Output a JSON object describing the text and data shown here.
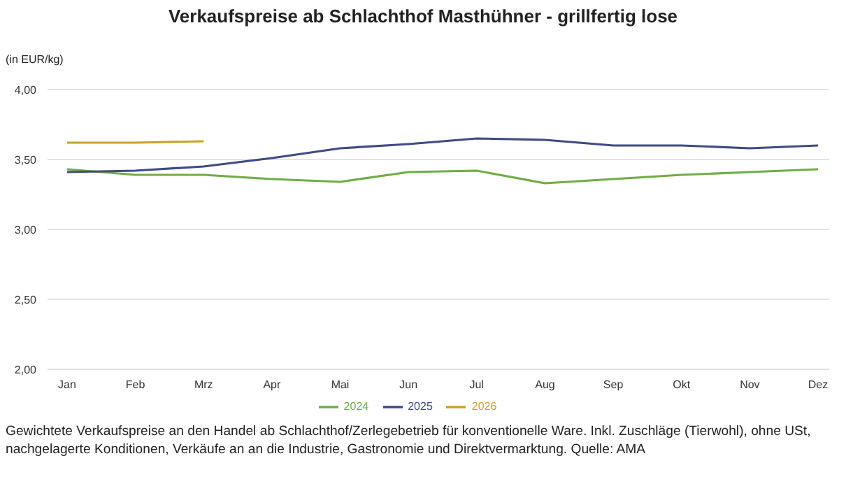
{
  "chart_data": {
    "type": "line",
    "title": "Verkaufspreise ab Schlachthof Masthühner - grillfertig lose",
    "ylabel": "(in EUR/kg)",
    "categories": [
      "Jan",
      "Feb",
      "Mrz",
      "Apr",
      "Mai",
      "Jun",
      "Jul",
      "Aug",
      "Sep",
      "Okt",
      "Nov",
      "Dez"
    ],
    "series": [
      {
        "name": "2024",
        "color": "#70ad47",
        "values": [
          3.43,
          3.39,
          3.39,
          3.36,
          3.34,
          3.41,
          3.42,
          3.33,
          3.36,
          3.39,
          3.41,
          3.43
        ]
      },
      {
        "name": "2025",
        "color": "#404a86",
        "values": [
          3.41,
          3.42,
          3.45,
          3.51,
          3.58,
          3.61,
          3.65,
          3.64,
          3.6,
          3.6,
          3.58,
          3.6
        ]
      },
      {
        "name": "2026",
        "color": "#c9a227",
        "values": [
          3.62,
          3.62,
          3.63,
          null,
          null,
          null,
          null,
          null,
          null,
          null,
          null,
          null
        ]
      }
    ],
    "ylim": [
      2,
      4
    ],
    "yticks": [
      {
        "value": 2,
        "label": "2,00"
      },
      {
        "value": 2.5,
        "label": "2,50"
      },
      {
        "value": 3,
        "label": "3,00"
      },
      {
        "value": 3.5,
        "label": "3,50"
      },
      {
        "value": 4,
        "label": "4,00"
      }
    ],
    "grid": "y",
    "legend": "bottom",
    "marker": "none",
    "line_style": "solid",
    "annotations": [
      "Gewichtete Verkaufspreise an den Handel ab Schlachthof/Zerlegebetrieb für konventionelle Ware. Inkl. Zuschläge (Tierwohl), ohne USt, nachgelagerte Konditionen, Verkäufe an an die Industrie, Gastronomie und Direktvermarktung. Quelle: AMA"
    ]
  }
}
